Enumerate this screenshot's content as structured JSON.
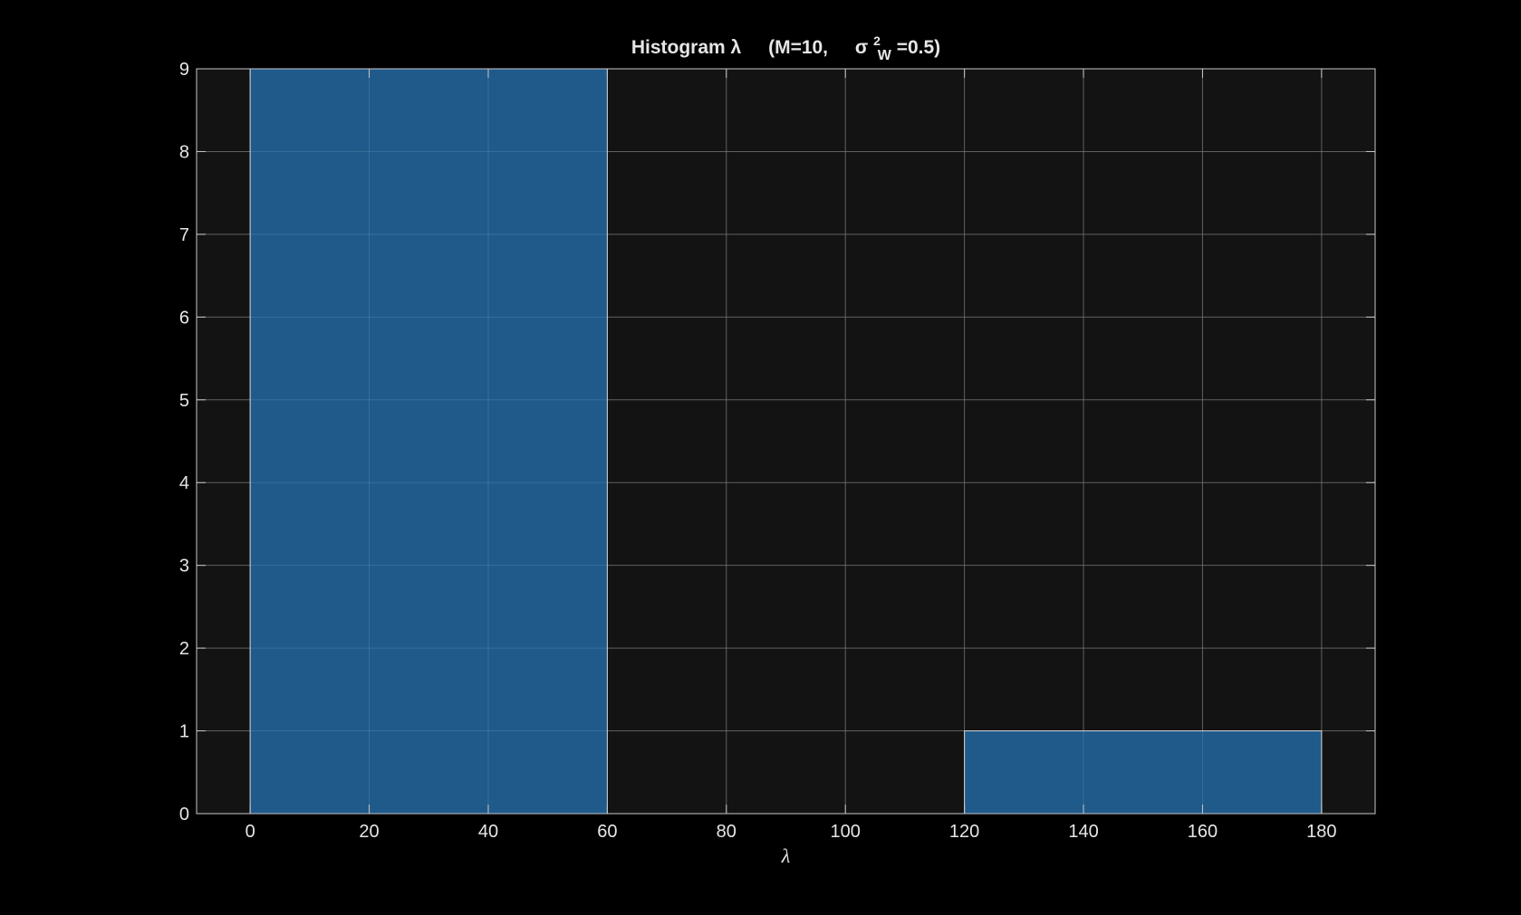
{
  "chart_data": {
    "type": "bar",
    "title": {
      "prefix": "Histogram  λ",
      "params": "(M=10,",
      "sigma": "σ",
      "sup": "2",
      "sub": "W",
      "suffix": "=0.5)"
    },
    "xlabel": "λ",
    "ylabel": "",
    "bins": [
      {
        "x0": 0,
        "x1": 60,
        "count": 9
      },
      {
        "x0": 60,
        "x1": 120,
        "count": 0
      },
      {
        "x0": 120,
        "x1": 180,
        "count": 1
      }
    ],
    "xlim": [
      -9,
      189
    ],
    "ylim": [
      0,
      9
    ],
    "xticks": [
      0,
      20,
      40,
      60,
      80,
      100,
      120,
      140,
      160,
      180
    ],
    "yticks": [
      0,
      1,
      2,
      3,
      4,
      5,
      6,
      7,
      8,
      9
    ],
    "grid": true,
    "colors": {
      "figure_background": "#000000",
      "axes_background": "#131313",
      "bar_fill": "#1f5a8b",
      "bar_edge": "#d0d0d0",
      "grid": "#4a4a4a",
      "axis": "#c8c8c8",
      "text": "#e6e6e6"
    }
  }
}
